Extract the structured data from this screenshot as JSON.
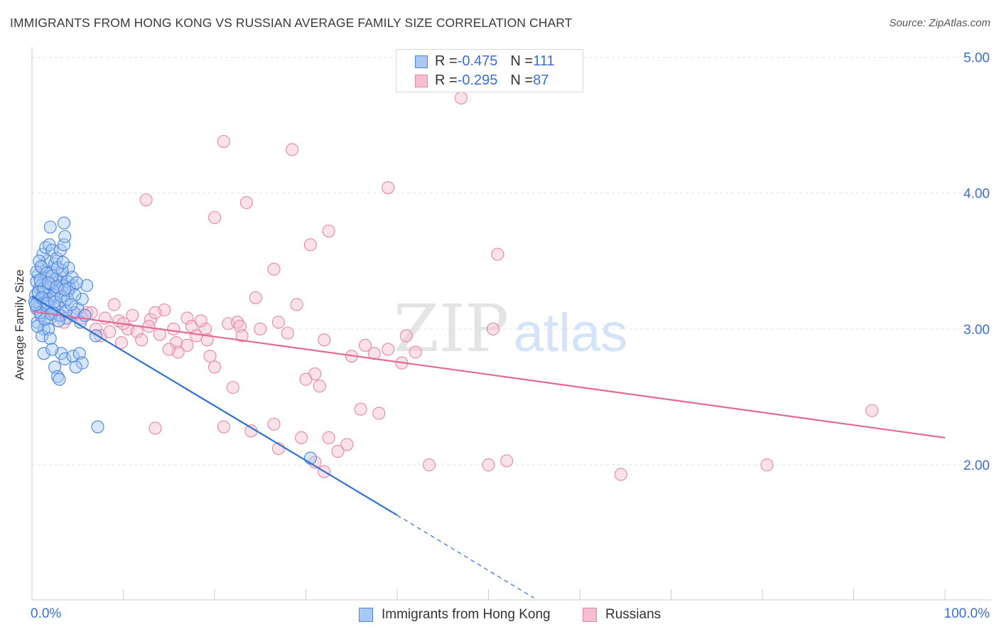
{
  "header": {
    "title": "IMMIGRANTS FROM HONG KONG VS RUSSIAN AVERAGE FAMILY SIZE CORRELATION CHART",
    "source": "Source: ZipAtlas.com"
  },
  "watermark": {
    "zip": "ZIP",
    "atlas": "atlas"
  },
  "stats_legend": [
    {
      "r_label": "R = ",
      "r_value": "-0.475",
      "n_label": "N = ",
      "n_value": "111"
    },
    {
      "r_label": "R = ",
      "r_value": "-0.295",
      "n_label": "N = ",
      "n_value": "87"
    }
  ],
  "colors": {
    "series1_fill": "#a9c8f3",
    "series1_stroke": "#4a86db",
    "series1_line": "#2f72d6",
    "series2_fill": "#f6bfd0",
    "series2_stroke": "#e885a6",
    "series2_line": "#e46a94",
    "tick_label": "#3a6fd1",
    "grid": "#e3e3e3",
    "axis": "#cccccc"
  },
  "chart_data": {
    "type": "scatter",
    "title": "IMMIGRANTS FROM HONG KONG VS RUSSIAN AVERAGE FAMILY SIZE CORRELATION CHART",
    "xlabel": "",
    "ylabel": "Average Family Size",
    "xlim": [
      0,
      100
    ],
    "ylim": [
      1.0,
      5.1
    ],
    "x_tick_labels": [
      "0.0%",
      "100.0%"
    ],
    "y_ticks": [
      2.0,
      3.0,
      4.0,
      5.0
    ],
    "y_tick_labels": [
      "2.00",
      "3.00",
      "4.00",
      "5.00"
    ],
    "grid": true,
    "legend_position": "bottom-center",
    "series": [
      {
        "name": "Immigrants from Hong Kong",
        "r": -0.475,
        "n": 111,
        "trend": {
          "x_start": 0.0,
          "y_start": 3.24,
          "x_solid_end": 40.0,
          "y_solid_end": 1.63,
          "x_dash_end": 55.0,
          "y_dash_end": 1.02
        },
        "points": [
          [
            0.4,
            3.25
          ],
          [
            0.6,
            3.2
          ],
          [
            0.8,
            3.3
          ],
          [
            1.0,
            3.22
          ],
          [
            1.2,
            3.28
          ],
          [
            0.5,
            3.15
          ],
          [
            0.9,
            3.18
          ],
          [
            1.5,
            3.25
          ],
          [
            1.8,
            3.3
          ],
          [
            2.0,
            3.2
          ],
          [
            2.3,
            3.35
          ],
          [
            2.6,
            3.28
          ],
          [
            0.7,
            3.4
          ],
          [
            1.1,
            3.45
          ],
          [
            1.4,
            3.38
          ],
          [
            1.7,
            3.5
          ],
          [
            2.1,
            3.42
          ],
          [
            2.5,
            3.48
          ],
          [
            3.0,
            3.35
          ],
          [
            3.3,
            3.4
          ],
          [
            0.6,
            3.05
          ],
          [
            1.0,
            3.1
          ],
          [
            1.3,
            3.0
          ],
          [
            1.6,
            3.12
          ],
          [
            2.0,
            3.08
          ],
          [
            2.4,
            3.15
          ],
          [
            2.8,
            3.18
          ],
          [
            3.2,
            3.1
          ],
          [
            3.6,
            3.2
          ],
          [
            4.0,
            3.28
          ],
          [
            4.5,
            3.32
          ],
          [
            5.0,
            3.15
          ],
          [
            5.5,
            3.22
          ],
          [
            6.0,
            3.32
          ],
          [
            1.2,
            3.55
          ],
          [
            1.5,
            3.6
          ],
          [
            1.9,
            3.62
          ],
          [
            2.2,
            3.58
          ],
          [
            2.7,
            3.52
          ],
          [
            3.1,
            3.58
          ],
          [
            3.5,
            3.62
          ],
          [
            4.0,
            3.45
          ],
          [
            2.0,
            3.75
          ],
          [
            3.5,
            3.78
          ],
          [
            3.6,
            3.68
          ],
          [
            0.8,
            3.5
          ],
          [
            1.1,
            2.95
          ],
          [
            1.8,
            3.0
          ],
          [
            2.0,
            2.93
          ],
          [
            3.2,
            2.82
          ],
          [
            3.6,
            2.78
          ],
          [
            4.5,
            2.8
          ],
          [
            5.2,
            2.82
          ],
          [
            5.5,
            2.75
          ],
          [
            4.8,
            2.72
          ],
          [
            2.5,
            2.72
          ],
          [
            2.8,
            2.65
          ],
          [
            3.0,
            2.63
          ],
          [
            1.3,
            2.82
          ],
          [
            2.2,
            2.85
          ],
          [
            7.0,
            2.95
          ],
          [
            7.2,
            2.28
          ],
          [
            30.5,
            2.05
          ],
          [
            0.5,
            3.35
          ],
          [
            1.0,
            3.32
          ],
          [
            1.4,
            3.27
          ],
          [
            1.9,
            3.22
          ],
          [
            2.4,
            3.25
          ],
          [
            2.9,
            3.3
          ],
          [
            3.4,
            3.32
          ],
          [
            3.9,
            3.35
          ],
          [
            4.4,
            3.38
          ],
          [
            0.3,
            3.2
          ],
          [
            0.9,
            3.12
          ],
          [
            1.6,
            3.17
          ],
          [
            2.3,
            3.12
          ],
          [
            3.0,
            3.1
          ],
          [
            3.8,
            3.08
          ],
          [
            4.6,
            3.12
          ],
          [
            5.3,
            3.05
          ],
          [
            0.7,
            3.27
          ],
          [
            1.3,
            3.3
          ],
          [
            2.0,
            3.33
          ],
          [
            2.6,
            3.37
          ],
          [
            3.3,
            3.43
          ],
          [
            4.1,
            3.3
          ],
          [
            0.5,
            3.42
          ],
          [
            1.0,
            3.46
          ],
          [
            1.6,
            3.41
          ],
          [
            2.2,
            3.39
          ],
          [
            2.8,
            3.45
          ],
          [
            3.4,
            3.49
          ],
          [
            0.4,
            3.18
          ],
          [
            1.1,
            3.23
          ],
          [
            1.7,
            3.19
          ],
          [
            2.5,
            3.2
          ],
          [
            3.2,
            3.24
          ],
          [
            3.9,
            3.22
          ],
          [
            4.7,
            3.25
          ],
          [
            0.6,
            3.02
          ],
          [
            1.4,
            3.07
          ],
          [
            2.1,
            3.11
          ],
          [
            2.9,
            3.06
          ],
          [
            3.7,
            3.13
          ],
          [
            4.3,
            3.18
          ],
          [
            5.8,
            3.1
          ],
          [
            0.9,
            3.36
          ],
          [
            1.8,
            3.34
          ],
          [
            2.7,
            3.31
          ],
          [
            3.6,
            3.29
          ],
          [
            4.9,
            3.34
          ]
        ]
      },
      {
        "name": "Russians",
        "r": -0.295,
        "n": 87,
        "trend": {
          "x_start": 0.0,
          "y_start": 3.13,
          "x_end": 100.0,
          "y_end": 2.2
        },
        "points": [
          [
            47.0,
            4.7
          ],
          [
            21.0,
            4.38
          ],
          [
            28.5,
            4.32
          ],
          [
            39.0,
            4.04
          ],
          [
            12.5,
            3.95
          ],
          [
            23.5,
            3.93
          ],
          [
            20.0,
            3.82
          ],
          [
            32.5,
            3.72
          ],
          [
            30.5,
            3.62
          ],
          [
            51.0,
            3.55
          ],
          [
            26.5,
            3.44
          ],
          [
            24.5,
            3.23
          ],
          [
            29.0,
            3.18
          ],
          [
            9.0,
            3.18
          ],
          [
            14.5,
            3.14
          ],
          [
            17.0,
            3.08
          ],
          [
            11.0,
            3.1
          ],
          [
            13.0,
            3.07
          ],
          [
            8.0,
            3.08
          ],
          [
            9.5,
            3.06
          ],
          [
            6.0,
            3.12
          ],
          [
            5.5,
            3.08
          ],
          [
            4.5,
            3.1
          ],
          [
            3.5,
            3.05
          ],
          [
            10.5,
            3.0
          ],
          [
            11.5,
            2.98
          ],
          [
            12.8,
            3.02
          ],
          [
            14.0,
            2.96
          ],
          [
            15.5,
            3.0
          ],
          [
            17.5,
            3.02
          ],
          [
            19.0,
            3.0
          ],
          [
            21.5,
            3.04
          ],
          [
            22.5,
            3.05
          ],
          [
            22.8,
            3.02
          ],
          [
            27.0,
            3.05
          ],
          [
            7.0,
            3.0
          ],
          [
            7.5,
            2.95
          ],
          [
            8.5,
            2.98
          ],
          [
            9.8,
            2.9
          ],
          [
            12.0,
            2.92
          ],
          [
            15.8,
            2.9
          ],
          [
            17.0,
            2.88
          ],
          [
            18.0,
            2.95
          ],
          [
            19.2,
            2.92
          ],
          [
            16.0,
            2.83
          ],
          [
            19.5,
            2.8
          ],
          [
            20.0,
            2.72
          ],
          [
            23.0,
            2.95
          ],
          [
            37.5,
            2.82
          ],
          [
            39.0,
            2.85
          ],
          [
            40.5,
            2.75
          ],
          [
            41.0,
            2.95
          ],
          [
            35.0,
            2.8
          ],
          [
            31.0,
            2.67
          ],
          [
            31.5,
            2.58
          ],
          [
            30.0,
            2.63
          ],
          [
            22.0,
            2.57
          ],
          [
            36.0,
            2.41
          ],
          [
            38.0,
            2.38
          ],
          [
            26.5,
            2.3
          ],
          [
            21.0,
            2.28
          ],
          [
            24.0,
            2.25
          ],
          [
            13.5,
            2.27
          ],
          [
            29.5,
            2.2
          ],
          [
            32.5,
            2.2
          ],
          [
            34.5,
            2.15
          ],
          [
            27.0,
            2.12
          ],
          [
            33.5,
            2.1
          ],
          [
            31.0,
            2.02
          ],
          [
            32.0,
            1.95
          ],
          [
            43.5,
            2.0
          ],
          [
            50.0,
            2.0
          ],
          [
            52.0,
            2.03
          ],
          [
            64.5,
            1.93
          ],
          [
            80.5,
            2.0
          ],
          [
            92.0,
            2.4
          ],
          [
            15.0,
            2.85
          ],
          [
            6.5,
            3.12
          ],
          [
            10.0,
            3.04
          ],
          [
            13.5,
            3.12
          ],
          [
            18.5,
            3.06
          ],
          [
            25.0,
            3.0
          ],
          [
            28.0,
            2.97
          ],
          [
            32.0,
            2.92
          ],
          [
            36.5,
            2.88
          ],
          [
            42.0,
            2.83
          ],
          [
            50.5,
            3.0
          ]
        ]
      }
    ]
  },
  "bottom_legend": [
    {
      "label": "Immigrants from Hong Kong"
    },
    {
      "label": "Russians"
    }
  ]
}
